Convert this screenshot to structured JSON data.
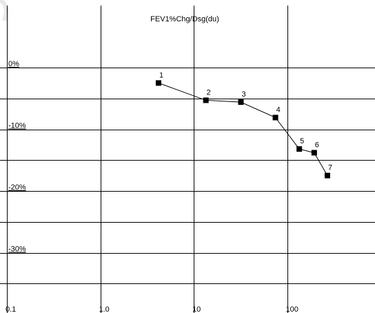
{
  "chart_data": {
    "type": "line",
    "title": "FEV1%Chg/Dsg(du)",
    "xlabel": "",
    "ylabel": "",
    "x_scale": "log",
    "xlim": [
      0.1,
      1000
    ],
    "ylim": [
      -35,
      3
    ],
    "grid": true,
    "legend": "none",
    "x_ticks": [
      {
        "value": 0.1,
        "label": "0.1"
      },
      {
        "value": 1,
        "label": "1.0"
      },
      {
        "value": 10,
        "label": "10"
      },
      {
        "value": 100,
        "label": "100"
      }
    ],
    "y_ticks": [
      {
        "value": 0,
        "label": "0%"
      },
      {
        "value": -10,
        "label": "-10%"
      },
      {
        "value": -20,
        "label": "-20%"
      },
      {
        "value": -30,
        "label": "-30%"
      }
    ],
    "series": [
      {
        "color": "#000000",
        "marker": "square",
        "points": [
          {
            "label": "1",
            "x": 4.2,
            "y": -2.5
          },
          {
            "label": "2",
            "x": 13.5,
            "y": -5.3
          },
          {
            "label": "3",
            "x": 32,
            "y": -5.6
          },
          {
            "label": "4",
            "x": 75,
            "y": -8.1
          },
          {
            "label": "5",
            "x": 135,
            "y": -13.2
          },
          {
            "label": "6",
            "x": 195,
            "y": -13.8
          },
          {
            "label": "7",
            "x": 270,
            "y": -17.5
          }
        ]
      }
    ]
  }
}
